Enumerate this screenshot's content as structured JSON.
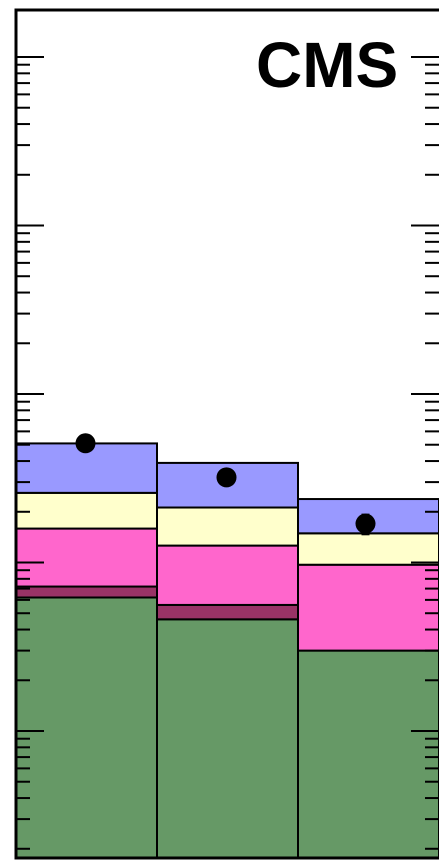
{
  "chart_data": {
    "type": "bar",
    "stacked": true,
    "log_y": true,
    "label": "CMS",
    "bins": 3,
    "ylim_decades": [
      0,
      5
    ],
    "series": [
      {
        "color": "#669966",
        "values": [
          62,
          46,
          30
        ]
      },
      {
        "color": "#993366",
        "values": [
          10,
          10,
          0
        ]
      },
      {
        "color": "#ff66cc",
        "values": [
          87,
          70,
          67
        ]
      },
      {
        "color": "#ffffcc",
        "values": [
          100,
          86,
          52
        ]
      },
      {
        "color": "#9999ff",
        "values": [
          250,
          178,
          89
        ]
      }
    ],
    "data_points": [
      {
        "bin": 1,
        "value": 510,
        "err_low": 0,
        "err_high": 0
      },
      {
        "bin": 2,
        "value": 320,
        "err_low": 0,
        "err_high": 0
      },
      {
        "bin": 3,
        "value": 170,
        "err_low": 25,
        "err_high": 25
      }
    ]
  }
}
